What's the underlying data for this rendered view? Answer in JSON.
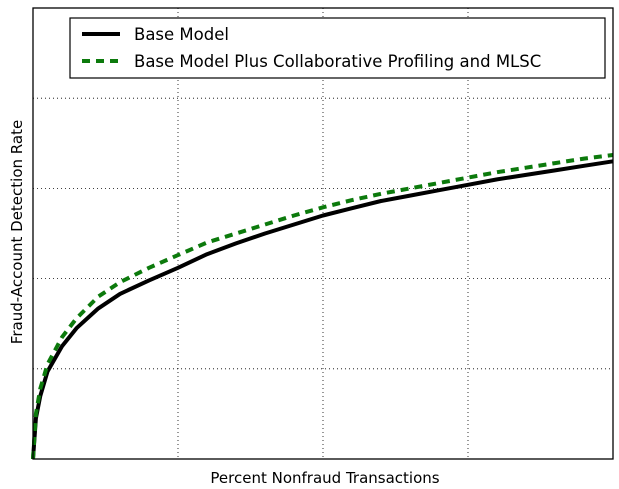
{
  "chart_data": {
    "type": "line",
    "title": "",
    "xlabel": "Percent Nonfraud Transactions",
    "ylabel": "Fraud-Account Detection Rate",
    "x_tick_labels": [],
    "y_tick_labels": [],
    "xlim": [
      0,
      4
    ],
    "ylim": [
      0,
      5
    ],
    "grid": true,
    "legend_position": "top",
    "series": [
      {
        "name": "Base Model",
        "color": "#000000",
        "style": "solid",
        "x": [
          0,
          0.02,
          0.05,
          0.1,
          0.2,
          0.3,
          0.45,
          0.6,
          0.8,
          1.0,
          1.2,
          1.4,
          1.6,
          1.8,
          2.0,
          2.2,
          2.4,
          2.6,
          2.8,
          3.0,
          3.2,
          3.4,
          3.6,
          3.8,
          4.0
        ],
        "y": [
          0,
          0.45,
          0.7,
          0.97,
          1.25,
          1.45,
          1.67,
          1.83,
          1.98,
          2.12,
          2.27,
          2.39,
          2.5,
          2.6,
          2.7,
          2.78,
          2.86,
          2.92,
          2.98,
          3.04,
          3.1,
          3.15,
          3.2,
          3.25,
          3.3
        ]
      },
      {
        "name": "Base Model Plus Collaborative Profiling and MLSC",
        "color": "#0c7a0c",
        "style": "dashed",
        "x": [
          0,
          0.02,
          0.05,
          0.1,
          0.2,
          0.3,
          0.45,
          0.6,
          0.8,
          1.0,
          1.2,
          1.4,
          1.6,
          1.8,
          2.0,
          2.2,
          2.4,
          2.6,
          2.8,
          3.0,
          3.2,
          3.4,
          3.6,
          3.8,
          4.0
        ],
        "y": [
          0,
          0.5,
          0.78,
          1.05,
          1.35,
          1.56,
          1.8,
          1.96,
          2.12,
          2.26,
          2.4,
          2.5,
          2.6,
          2.7,
          2.79,
          2.87,
          2.94,
          3.0,
          3.06,
          3.12,
          3.18,
          3.23,
          3.28,
          3.33,
          3.37
        ]
      }
    ]
  }
}
